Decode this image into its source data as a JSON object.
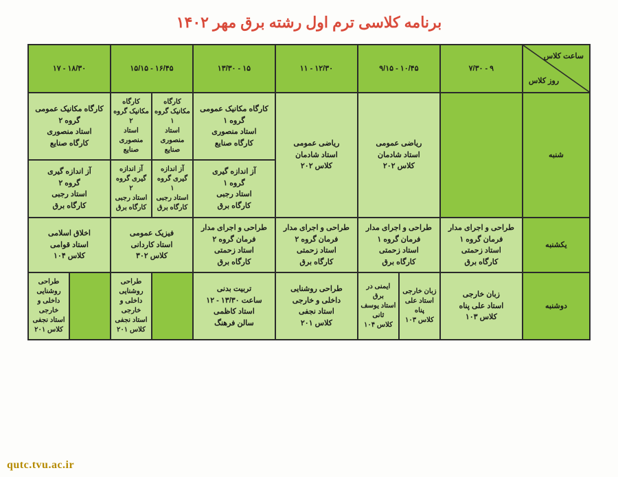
{
  "title": "برنامه کلاسی ترم اول رشته برق مهر ۱۴۰۲",
  "watermark": "qutc.tvu.ac.ir",
  "corner": {
    "top": "ساعت کلاس",
    "bottom": "روز کلاس"
  },
  "time_slots": [
    "۹ - ۷/۳۰",
    "۱۰/۴۵ - ۹/۱۵",
    "۱۲/۳۰ - ۱۱",
    "۱۵ - ۱۳/۳۰",
    "۱۶/۴۵ - ۱۵/۱۵",
    "۱۸/۳۰ - ۱۷"
  ],
  "days": [
    "شنبه",
    "یکشنبه",
    "دوشنبه"
  ],
  "sat": {
    "c1_top": "",
    "c2a_top": "ریاضی عمومی\nاستاد شادمان\nکلاس ۲۰۲",
    "c3_top": "ریاضی عمومی\nاستاد شادمان\nکلاس ۲۰۲",
    "c4_top": "کارگاه مکانیک عمومی\nگروه ۱\nاستاد منصوری\nکارگاه صنایع",
    "c5a_top": "کارگاه مکانیک گروه ۱\nاستاد منصوری\nصنایع",
    "c5b_top": "کارگاه مکانیک گروه ۲\nاستاد منصوری\nصنایع",
    "c6_top": "کارگاه مکانیک عمومی\nگروه ۲\nاستاد منصوری\nکارگاه صنایع",
    "c4_bot": "آز اندازه گیری\nگروه ۱\nاستاد رجبی\nکارگاه برق",
    "c5a_bot": "آز اندازه گیری گروه ۱\nاستاد رجبی\nکارگاه برق",
    "c5b_bot": "آز اندازه گیری گروه ۲\nاستاد رجبی\nکارگاه برق",
    "c6_bot": "آز اندازه گیری\nگروه ۲\nاستاد رجبی\nکارگاه برق"
  },
  "sun": {
    "c1": "طراحی و اجرای مدار\nفرمان گروه ۱\nاستاد زحمتی\nکارگاه برق",
    "c2": "طراحی و اجرای مدار\nفرمان گروه ۱\nاستاد زحمتی\nکارگاه برق",
    "c3": "طراحی و اجرای مدار\nفرمان گروه ۲\nاستاد زحمتی\nکارگاه برق",
    "c4": "طراحی و اجرای مدار\nفرمان گروه ۲\nاستاد زحمتی\nکارگاه برق",
    "c5": "فیزیک عمومی\nاستاد کاردانی\nکلاس ۳۰۲",
    "c6": "اخلاق اسلامی\nاستاد قوامی\nکلاس ۱۰۴"
  },
  "mon": {
    "c1": "زبان خارجی\nاستاد علی پناه\nکلاس ۱۰۳",
    "c2a": "زبان خارجی\nاستاد علی پناه\nکلاس ۱۰۳",
    "c2b": "ایمنی در برق\nاستاد یوسف ثانی\nکلاس ۱۰۴",
    "c3": "طراحی روشنایی\nداخلی و خارجی\nاستاد نجفی\nکلاس ۲۰۱",
    "c4": "تربیت بدنی\nساعت ۱۳/۳۰ - ۱۲\nاستاد کاظمی\nسالن فرهنگ",
    "c5a": "",
    "c5b": "طراحی روشنایی داخلی و خارجی\nاستاد نجفی\nکلاس ۲۰۱",
    "c6a": "",
    "c6b": "طراحی روشنایی داخلی و خارجی\nاستاد نجفی\nکلاس ۲۰۱"
  },
  "colors": {
    "header_bg": "#8fc641",
    "cell_bg": "#c5e29a",
    "title": "#d94a3a",
    "border": "#2a2a2a"
  }
}
